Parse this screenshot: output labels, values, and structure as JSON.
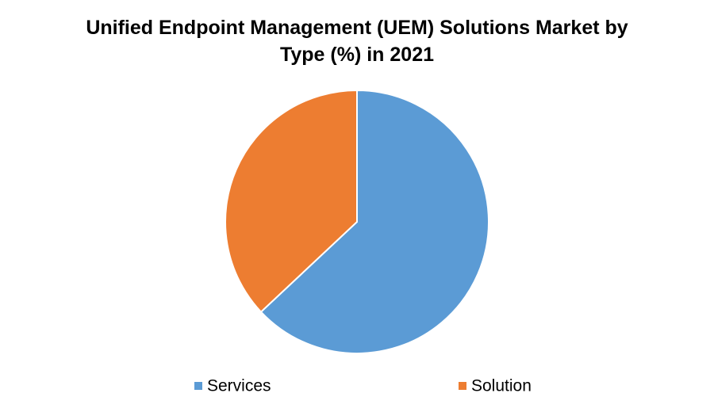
{
  "chart_data": {
    "type": "pie",
    "title": "Unified Endpoint Management (UEM) Solutions Market by Type (%) in 2021",
    "categories": [
      "Services",
      "Solution"
    ],
    "values": [
      63,
      37
    ],
    "colors": [
      "#5b9bd5",
      "#ed7d31"
    ],
    "legend": "bottom"
  }
}
